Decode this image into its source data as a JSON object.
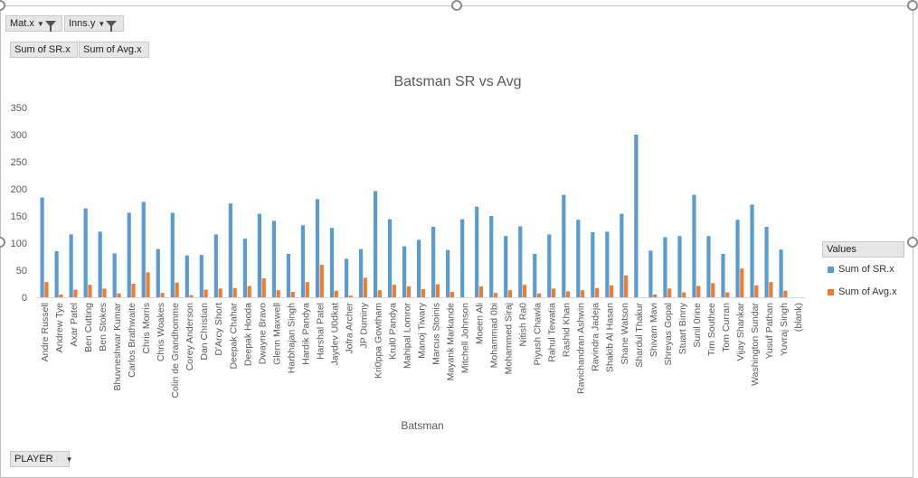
{
  "filters": {
    "mat": {
      "label": "Mat.x"
    },
    "inns": {
      "label": "Inns.y"
    }
  },
  "value_fields": [
    "Sum of SR.x",
    "Sum of Avg.x"
  ],
  "row_field": {
    "label": "PLAYER"
  },
  "legend": {
    "title": "Values"
  },
  "colors": {
    "series1": "#5b9bd5",
    "series2": "#ed7d31"
  },
  "chart_data": {
    "type": "bar",
    "title": "Batsman SR vs Avg",
    "xlabel": "Batsman",
    "ylabel": "",
    "ylim": [
      0,
      350
    ],
    "yticks": [
      0,
      50,
      100,
      150,
      200,
      250,
      300,
      350
    ],
    "grid": false,
    "legend_position": "right",
    "categories": [
      "Andre Russell",
      "Andrew Tye",
      "Axar Patel",
      "Ben Cutting",
      "Ben Stokes",
      "Bhuvneshwar Kumar",
      "Carlos Brathwaite",
      "Chris Morris",
      "Chris Woakes",
      "Colin de Grandhomme",
      "Corey Anderson",
      "Dan Christian",
      "D'Arcy Short",
      "Deepak Chahar",
      "Deepak Hooda",
      "Dwayne Bravo",
      "Glenn Maxwell",
      "Harbhajan Singh",
      "Hardik Pandya",
      "Harshal Patel",
      "Jaydev U0dkat",
      "Jofra Archer",
      "JP Duminy",
      "Kri0ppa Gowtham",
      "Krul0 Pandya",
      "Mahipal Lomror",
      "Manoj Tiwary",
      "Marcus Stoinis",
      "Mayank Markande",
      "Mitchell Johnson",
      "Moeen Ali",
      "Mohammad 0bi",
      "Mohammed Siraj",
      "Nitish Ra0",
      "Piyush Chawla",
      "Rahul Tewatia",
      "Rashid Khan",
      "Ravichandran Ashwin",
      "Ravindra Jadeja",
      "Shakib Al Hasan",
      "Shane Watson",
      "Shardul Thakur",
      "Shivam Mavi",
      "Shreyas Gopal",
      "Stuart Binny",
      "Sunil 0rine",
      "Tim Southee",
      "Tom Curran",
      "Vijay Shankar",
      "Washington Sundar",
      "Yusuf Pathan",
      "Yuvraj Singh",
      "(blank)"
    ],
    "series": [
      {
        "name": "Sum of SR.x",
        "values": [
          184,
          85,
          116,
          164,
          121,
          81,
          156,
          176,
          89,
          156,
          77,
          78,
          116,
          173,
          108,
          154,
          141,
          80,
          133,
          181,
          128,
          71,
          89,
          196,
          144,
          94,
          106,
          130,
          87,
          144,
          167,
          150,
          113,
          131,
          80,
          116,
          189,
          143,
          120,
          121,
          154,
          300,
          86,
          111,
          113,
          189,
          113,
          80,
          143,
          171,
          130,
          88,
          0
        ]
      },
      {
        "name": "Sum of Avg.x",
        "values": [
          28,
          5,
          14,
          23,
          16,
          7,
          25,
          46,
          8,
          27,
          4,
          14,
          16,
          17,
          21,
          35,
          13,
          10,
          28,
          60,
          12,
          3,
          36,
          13,
          23,
          20,
          15,
          24,
          10,
          0,
          20,
          8,
          13,
          23,
          7,
          16,
          11,
          13,
          17,
          22,
          40,
          0,
          5,
          16,
          9,
          21,
          26,
          9,
          53,
          22,
          28,
          12,
          0
        ]
      }
    ]
  }
}
